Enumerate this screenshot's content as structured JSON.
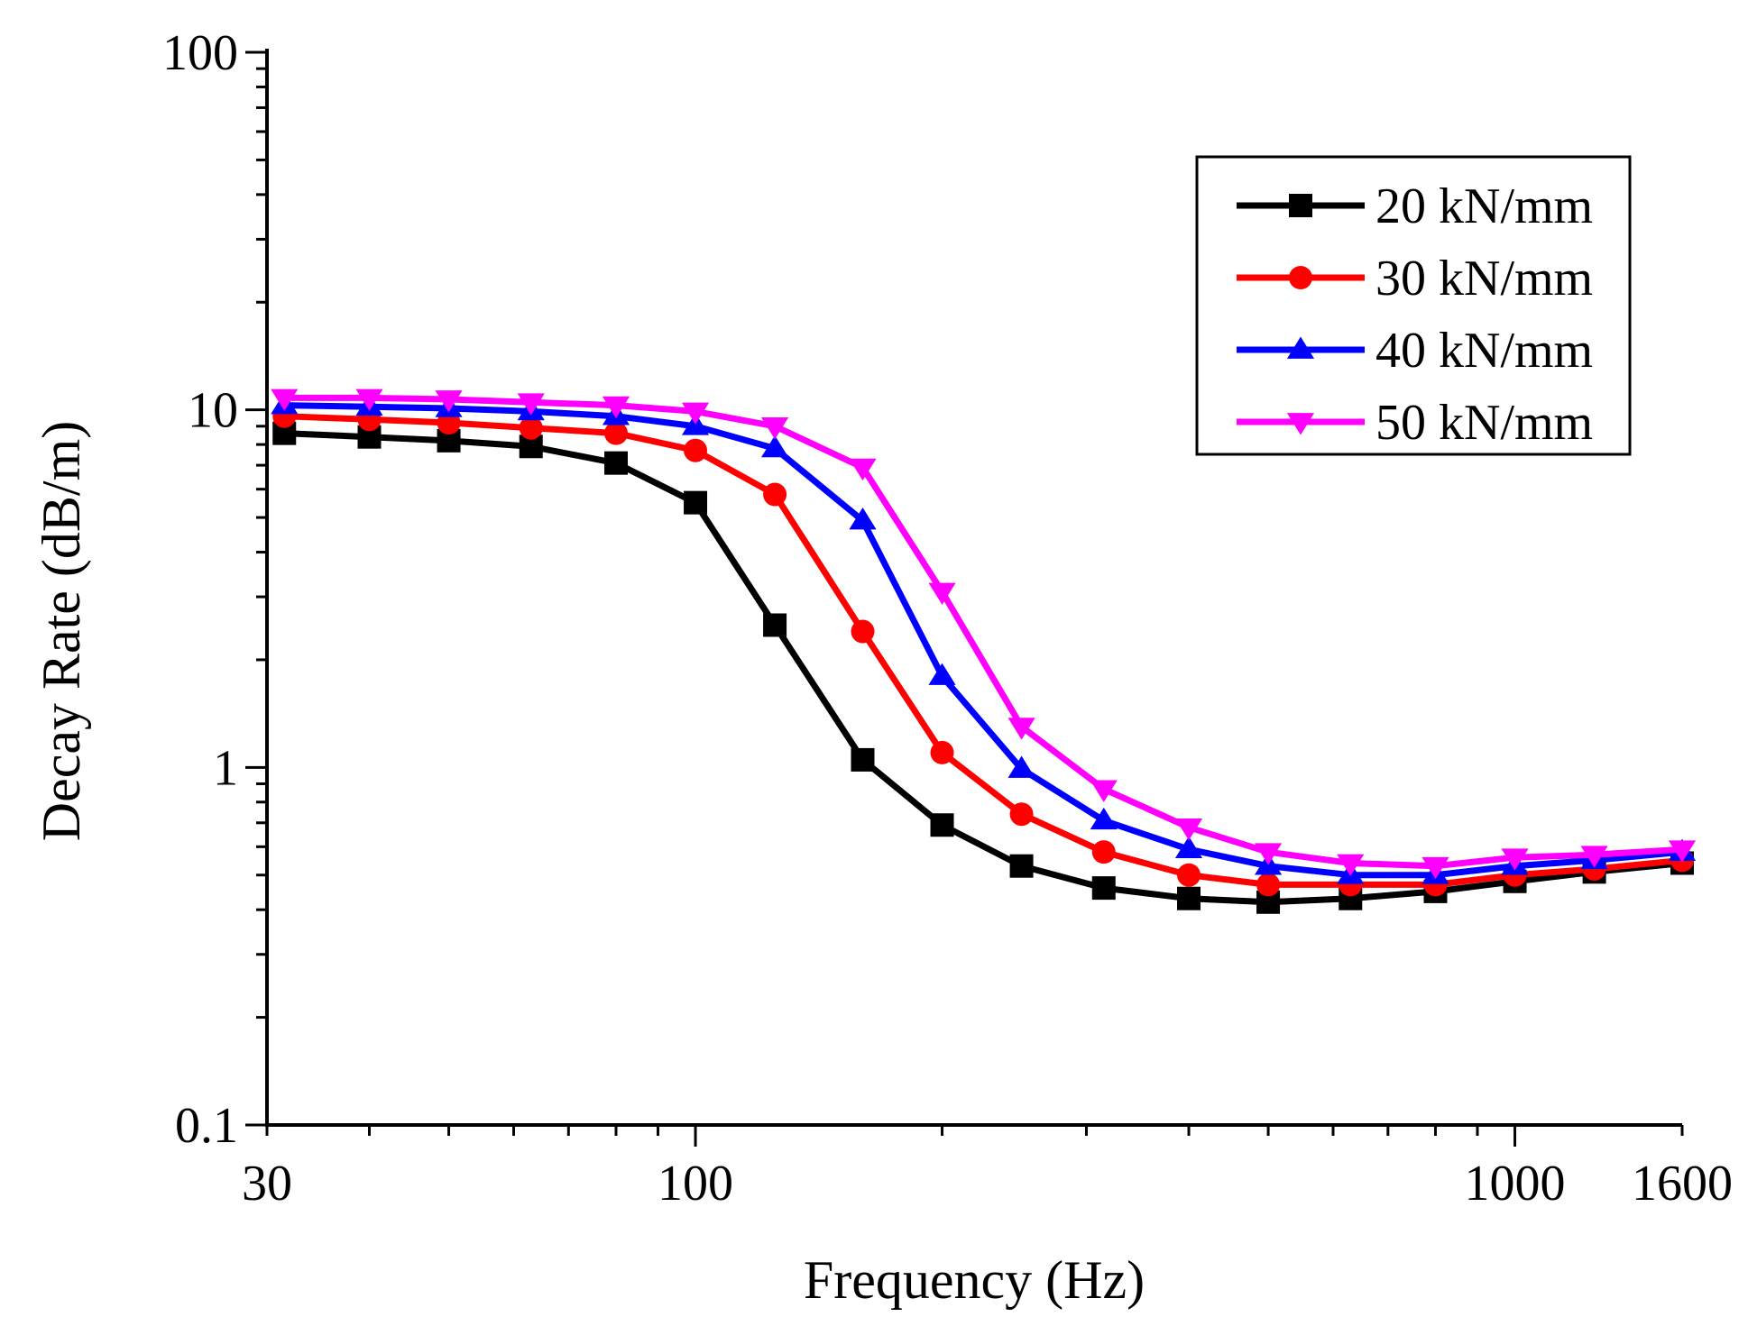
{
  "chart_data": {
    "type": "line",
    "title": "",
    "xlabel": "Frequency (Hz)",
    "ylabel": "Decay Rate (dB/m)",
    "xscale": "log",
    "yscale": "log",
    "xlim": [
      30,
      1600
    ],
    "ylim": [
      0.1,
      100
    ],
    "x_tick_labels": [
      {
        "value": 30,
        "label": "30"
      },
      {
        "value": 100,
        "label": "100"
      },
      {
        "value": 1000,
        "label": "1000"
      },
      {
        "value": 1600,
        "label": "1600"
      }
    ],
    "y_tick_labels": [
      {
        "value": 0.1,
        "label": "0.1"
      },
      {
        "value": 1,
        "label": "1"
      },
      {
        "value": 10,
        "label": "10"
      },
      {
        "value": 100,
        "label": "100"
      }
    ],
    "grid": false,
    "legend_position": "top-right",
    "x": [
      31.5,
      40,
      50,
      63,
      80,
      100,
      125,
      160,
      200,
      250,
      315,
      400,
      500,
      630,
      800,
      1000,
      1250,
      1600
    ],
    "series": [
      {
        "name": "20 kN/mm",
        "color": "#000000",
        "marker": "square",
        "values": [
          8.6,
          8.4,
          8.2,
          7.9,
          7.1,
          5.5,
          2.5,
          1.05,
          0.69,
          0.53,
          0.46,
          0.43,
          0.42,
          0.43,
          0.45,
          0.48,
          0.51,
          0.54
        ]
      },
      {
        "name": "30 kN/mm",
        "color": "#ff0000",
        "marker": "circle",
        "values": [
          9.6,
          9.4,
          9.2,
          8.9,
          8.6,
          7.7,
          5.8,
          2.4,
          1.1,
          0.74,
          0.58,
          0.5,
          0.47,
          0.47,
          0.47,
          0.5,
          0.52,
          0.55
        ]
      },
      {
        "name": "40 kN/mm",
        "color": "#0000ff",
        "marker": "triangle-up",
        "values": [
          10.3,
          10.2,
          10.1,
          9.9,
          9.6,
          9.0,
          7.8,
          4.9,
          1.8,
          0.99,
          0.71,
          0.59,
          0.53,
          0.5,
          0.5,
          0.53,
          0.55,
          0.58
        ]
      },
      {
        "name": "50 kN/mm",
        "color": "#ff00ff",
        "marker": "triangle-down",
        "values": [
          10.8,
          10.8,
          10.7,
          10.5,
          10.3,
          9.9,
          9.0,
          6.9,
          3.1,
          1.3,
          0.87,
          0.68,
          0.58,
          0.54,
          0.53,
          0.56,
          0.57,
          0.59
        ]
      }
    ]
  }
}
